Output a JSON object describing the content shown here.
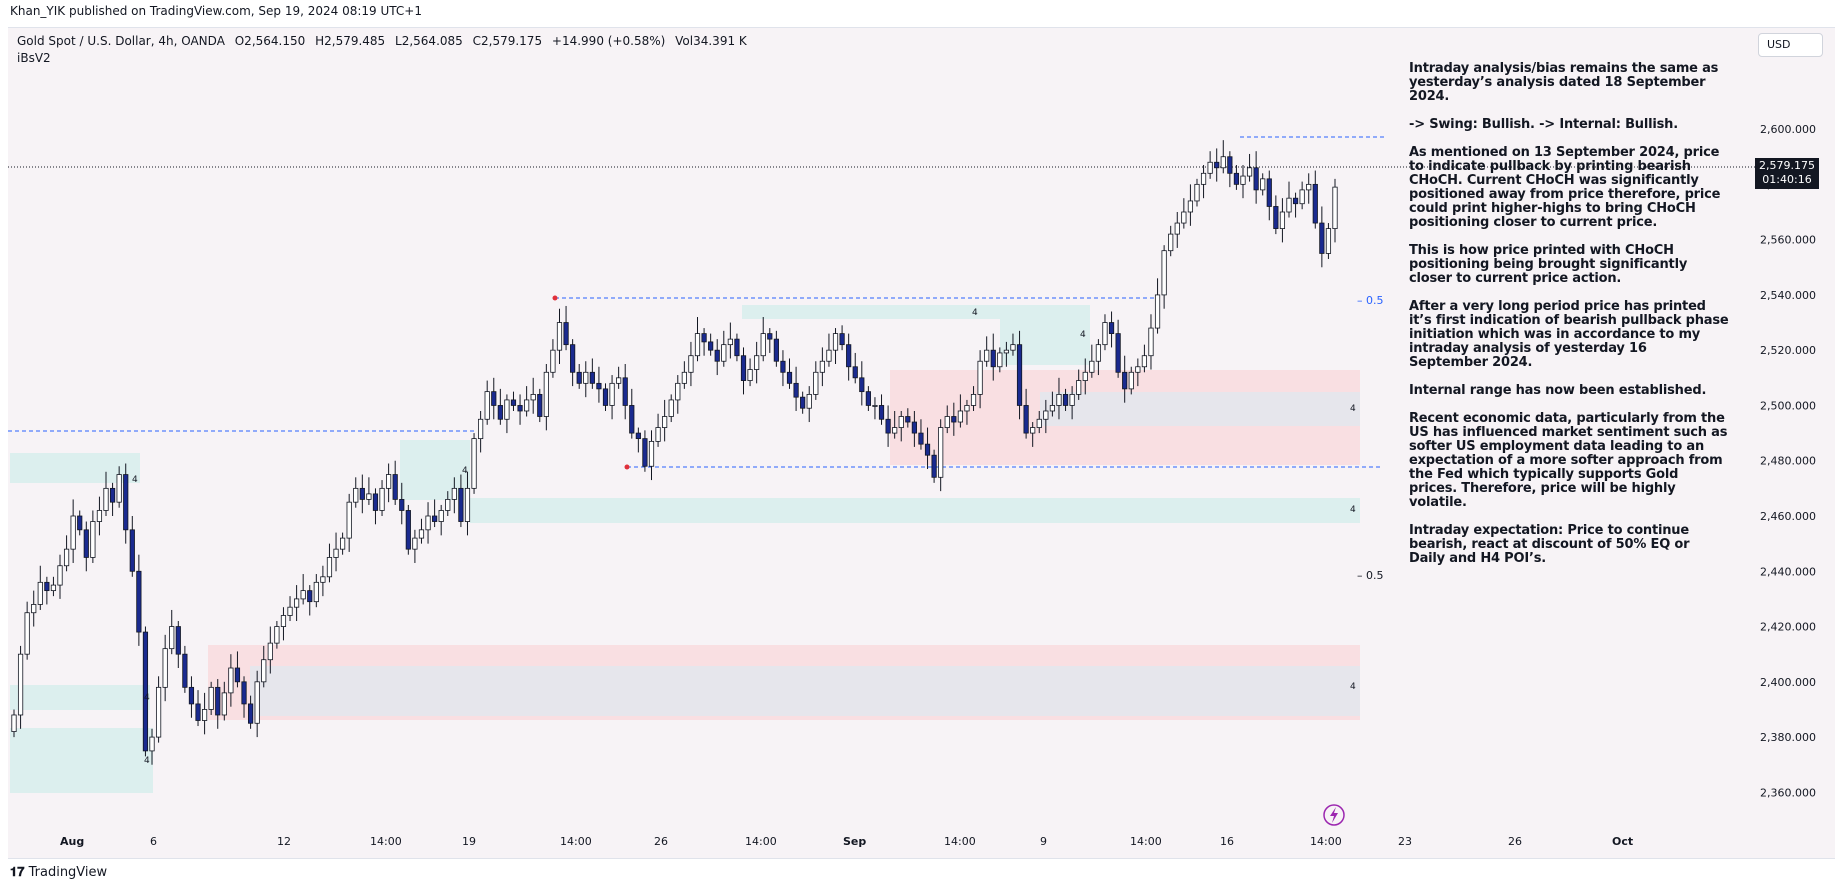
{
  "publisher_line": "Khan_YIK published on TradingView.com, Sep 19, 2024 08:19 UTC+1",
  "symbol": {
    "name": "Gold Spot / U.S. Dollar, 4h, OANDA",
    "open": "O2,564.150",
    "high": "H2,579.485",
    "low": "L2,564.085",
    "close": "C2,579.175",
    "change": "+14.990 (+0.58%)",
    "volume": "Vol34.391 K"
  },
  "indicator_label": "iBsV2",
  "currency_button": "USD",
  "last_price": {
    "price": "2,579.175",
    "countdown": "01:40:16"
  },
  "colors": {
    "background": "#f7f3f6",
    "bull_candle": "#ffffff",
    "bear_candle": "#1a2a8f",
    "wick": "#131722",
    "level_line": "#2962ff",
    "demand_zone": "#dcefee",
    "supply_zone": "#f9dfe2",
    "equilibrium_zone": "#e6e6ec"
  },
  "analysis_text": [
    "Intraday analysis/bias remains the same as yesterday’s analysis dated 18 September 2024.",
    "-> Swing: Bullish. -> Internal: Bullish.",
    "As mentioned on 13 September 2024, price to indicate pullback by printing bearish CHoCH. Current CHoCH was significantly positioned away from price therefore, price could print higher-highs to bring CHoCH positioning closer to current price.",
    "This is how price printed with CHoCH positioning being brought significantly closer to current price action.",
    "After a very long period price has printed it’s first indication of bearish pullback phase initiation which was in accordance to my intraday analysis of yesterday 16 September 2024.",
    "Internal range has now been established.",
    "Recent economic data, particularly from the US has influenced market sentiment such as softer US employment data leading to an expectation of a more softer approach from the Fed which typically supports Gold prices. Therefore, price will be highly volatile.",
    "Intraday expectation: Price to continue bearish, react at discount of 50% EQ or Daily and H4 POI’s."
  ],
  "footer_brand": "TradingView",
  "chart_data": {
    "type": "candlestick",
    "timeframe": "4h",
    "ylim": [
      2350,
      2625
    ],
    "y_ticks": [
      2360,
      2380,
      2400,
      2420,
      2440,
      2460,
      2480,
      2500,
      2520,
      2540,
      2560,
      2580,
      2600
    ],
    "y_tick_labels": [
      "2,360.000",
      "2,380.000",
      "2,400.000",
      "2,420.000",
      "2,440.000",
      "2,460.000",
      "2,480.000",
      "2,500.000",
      "2,520.000",
      "2,540.000",
      "2,560.000",
      "2,580.000",
      "2,600.000"
    ],
    "x_tick_labels": [
      "Aug",
      "6",
      "12",
      "14:00",
      "19",
      "14:00",
      "26",
      "14:00",
      "Sep",
      "14:00",
      "9",
      "14:00",
      "16",
      "14:00",
      "23",
      "26",
      "Oct"
    ],
    "closes": [
      2388,
      2410,
      2425,
      2428,
      2436,
      2433,
      2435,
      2442,
      2448,
      2460,
      2455,
      2445,
      2458,
      2462,
      2470,
      2465,
      2475,
      2455,
      2440,
      2418,
      2375,
      2380,
      2398,
      2412,
      2420,
      2410,
      2398,
      2392,
      2386,
      2390,
      2398,
      2388,
      2396,
      2405,
      2400,
      2392,
      2385,
      2400,
      2408,
      2414,
      2420,
      2424,
      2427,
      2430,
      2433,
      2429,
      2436,
      2438,
      2445,
      2448,
      2452,
      2465,
      2470,
      2466,
      2468,
      2462,
      2470,
      2475,
      2466,
      2462,
      2448,
      2452,
      2455,
      2460,
      2458,
      2462,
      2466,
      2470,
      2458,
      2470,
      2488,
      2495,
      2505,
      2500,
      2495,
      2502,
      2500,
      2498,
      2502,
      2504,
      2496,
      2512,
      2520,
      2530,
      2522,
      2512,
      2508,
      2512,
      2508,
      2506,
      2500,
      2508,
      2510,
      2500,
      2490,
      2488,
      2478,
      2487,
      2492,
      2496,
      2502,
      2508,
      2512,
      2518,
      2526,
      2523,
      2520,
      2516,
      2522,
      2524,
      2518,
      2509,
      2513,
      2518,
      2526,
      2524,
      2516,
      2512,
      2508,
      2503,
      2499,
      2504,
      2512,
      2516,
      2520,
      2526,
      2522,
      2514,
      2510,
      2505,
      2500,
      2500,
      2495,
      2490,
      2492,
      2496,
      2494,
      2490,
      2486,
      2482,
      2474,
      2492,
      2496,
      2494,
      2498,
      2500,
      2504,
      2516,
      2520,
      2514,
      2519,
      2520,
      2522,
      2500,
      2490,
      2492,
      2495,
      2498,
      2500,
      2504,
      2500,
      2504,
      2509,
      2512,
      2516,
      2522,
      2530,
      2526,
      2512,
      2506,
      2512,
      2514,
      2518,
      2528,
      2540,
      2556,
      2562,
      2566,
      2570,
      2574,
      2580,
      2584,
      2588,
      2586,
      2590,
      2584,
      2580,
      2583,
      2586,
      2578,
      2582,
      2572,
      2564,
      2570,
      2575,
      2573,
      2578,
      2580,
      2566,
      2555,
      2564,
      2579
    ]
  }
}
